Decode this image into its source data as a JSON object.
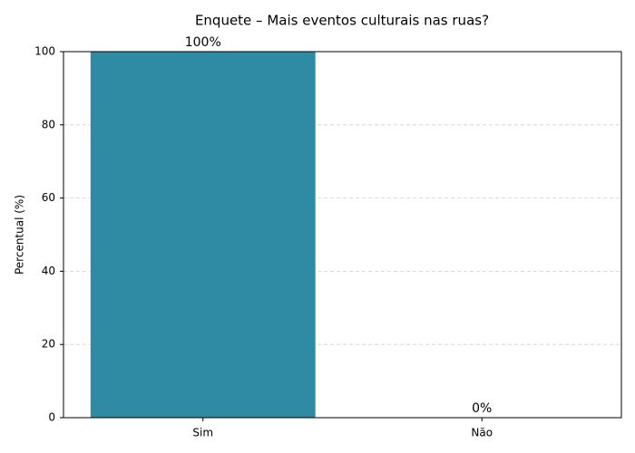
{
  "chart_data": {
    "type": "bar",
    "title": "Enquete – Mais eventos culturais nas ruas?",
    "y_label": "Percentual (%)",
    "categories": [
      "Sim",
      "Não"
    ],
    "values": [
      100,
      0
    ],
    "value_labels": [
      "100%",
      "0%"
    ],
    "color": "#2e8ba3",
    "ylim": [
      0,
      100
    ],
    "yticks": [
      0,
      20,
      40,
      60,
      80,
      100
    ],
    "grid": true
  }
}
